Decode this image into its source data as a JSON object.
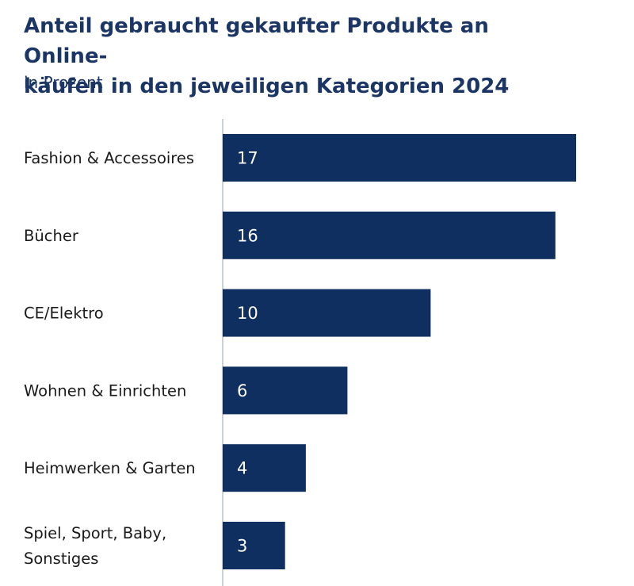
{
  "chart_data": {
    "type": "bar",
    "orientation": "horizontal",
    "title": "Anteil gebraucht gekaufter Produkte an Online-\nkäufen in den jeweiligen Kategorien 2024",
    "subtitle": "in Prozent",
    "categories": [
      "Fashion & Accessoires",
      "Bücher",
      "CE/Elektro",
      "Wohnen & Einrichten",
      "Heimwerken & Garten",
      "Spiel, Sport, Baby, Sonstiges"
    ],
    "category_label_lines": [
      [
        "Fashion & Accessoires"
      ],
      [
        "Bücher"
      ],
      [
        "CE/Elektro"
      ],
      [
        "Wohnen & Einrichten"
      ],
      [
        "Heimwerken & Garten"
      ],
      [
        "Spiel, Sport, Baby,",
        "Sonstiges"
      ]
    ],
    "values": [
      17,
      16,
      10,
      6,
      4,
      3
    ],
    "xlim": [
      0,
      17
    ],
    "grid": false,
    "bar_color": "#0e2f5f",
    "axis_color": "#9aa3ad"
  }
}
